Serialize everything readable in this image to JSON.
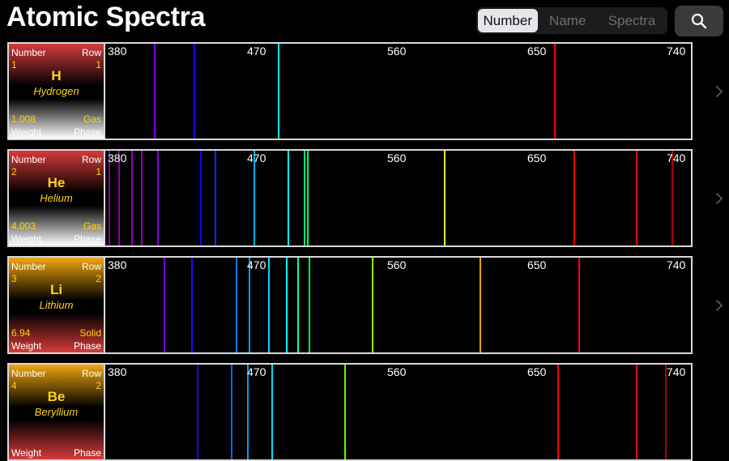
{
  "header": {
    "title": "Atomic Spectra",
    "sort_options": [
      "Number",
      "Name",
      "Spectra"
    ],
    "selected_sort": "Number",
    "search_icon": "search-icon"
  },
  "labels": {
    "number": "Number",
    "row": "Row",
    "weight": "Weight",
    "phase": "Phase"
  },
  "spectrum_axis": {
    "unit": "nm",
    "min_nm": 380,
    "max_nm": 740,
    "ticks": [
      "380",
      "470",
      "560",
      "650",
      "740"
    ]
  },
  "elements": [
    {
      "number": "1",
      "row": "1",
      "symbol": "H",
      "name": "Hydrogen",
      "weight": "1.008",
      "phase": "Gas",
      "tile_gradient": [
        "#d63a3a",
        "#000000",
        "#ffffff"
      ],
      "lines_nm": [
        410,
        434,
        486,
        656
      ]
    },
    {
      "number": "2",
      "row": "1",
      "symbol": "He",
      "name": "Helium",
      "weight": "4.003",
      "phase": "Gas",
      "tile_gradient": [
        "#d63a3a",
        "#000000",
        "#ffffff"
      ],
      "lines_nm": [
        382,
        388,
        396,
        402,
        412,
        438,
        447,
        471,
        492,
        502,
        504,
        588,
        668,
        706,
        728
      ]
    },
    {
      "number": "3",
      "row": "2",
      "symbol": "Li",
      "name": "Lithium",
      "weight": "6.94",
      "phase": "Solid",
      "tile_gradient": [
        "#f2a60c",
        "#000000",
        "#d63a3a"
      ],
      "lines_nm": [
        416,
        433,
        460,
        468,
        480,
        491,
        498,
        505,
        544,
        610,
        671
      ]
    },
    {
      "number": "4",
      "row": "2",
      "symbol": "Be",
      "name": "Beryllium",
      "weight": "",
      "phase": "",
      "tile_gradient": [
        "#f2a60c",
        "#000000",
        "#d63a3a"
      ],
      "lines_nm": [
        436,
        457,
        467,
        482,
        527,
        658,
        706,
        724
      ]
    }
  ]
}
